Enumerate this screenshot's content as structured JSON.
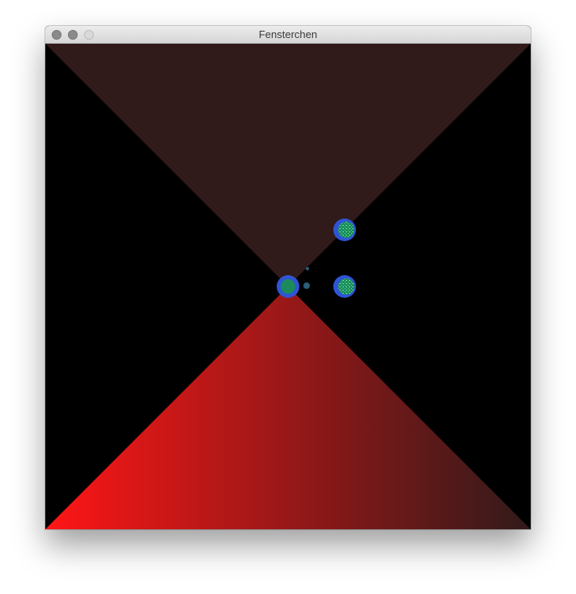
{
  "window": {
    "title": "Fensterchen"
  },
  "colors": {
    "background": "#000000",
    "top_triangle": "#311a1a",
    "bottom_gradient_left": "#ff1616",
    "bottom_gradient_right": "#311a1a",
    "circle_ring": "#2f54d4",
    "circle_fill": "#1d8a5c",
    "dot": "#2a5f7a"
  },
  "icons": {
    "close": "close-circle-icon",
    "minimize": "minimize-circle-icon",
    "zoom": "zoom-circle-icon"
  }
}
